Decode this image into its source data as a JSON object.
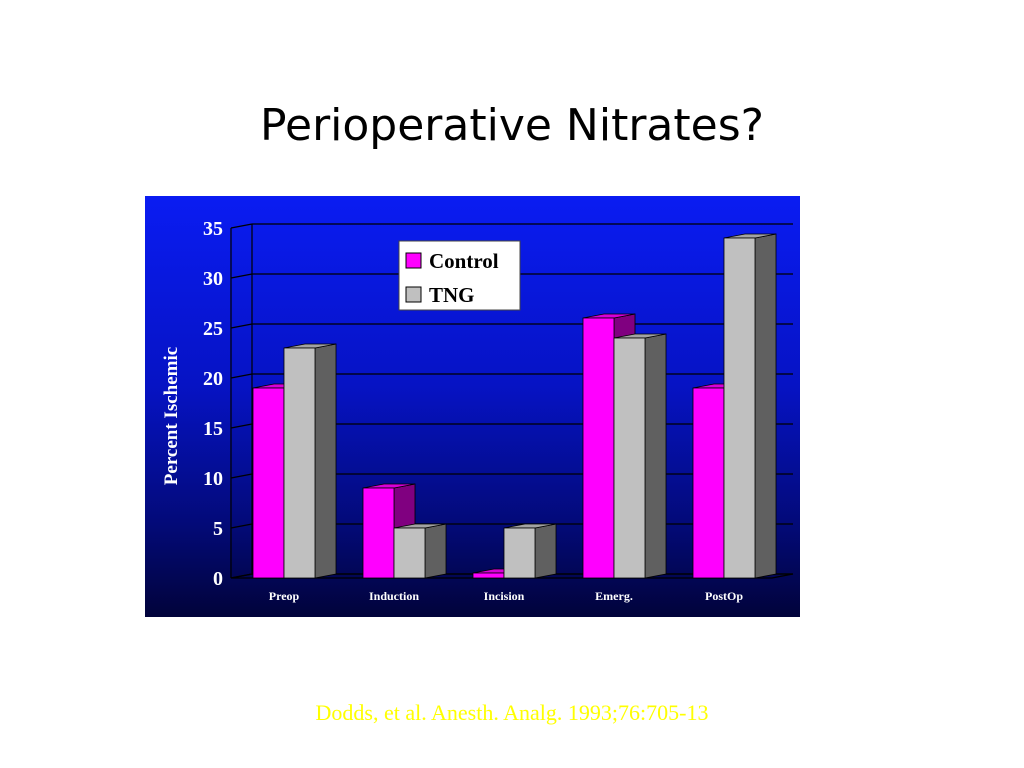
{
  "slide": {
    "title": "Perioperative Nitrates?",
    "citation": "Dodds, et al.  Anesth. Analg. 1993;76:705-13"
  },
  "colors": {
    "panel_top": "#0a1cf2",
    "panel_bottom": "#01033a",
    "control": "#ff00ff",
    "tng": "#c0c0c0",
    "citation": "#ffff00"
  },
  "chart_data": {
    "type": "bar",
    "categories": [
      "Preop",
      "Induction",
      "Incision",
      "Emerg.",
      "PostOp"
    ],
    "series": [
      {
        "name": "Control",
        "values": [
          19,
          9,
          0.5,
          26,
          19
        ]
      },
      {
        "name": "TNG",
        "values": [
          23,
          5,
          5,
          24,
          34
        ]
      }
    ],
    "ylabel": "Percent Ischemic",
    "xlabel": "",
    "ylim": [
      0,
      35
    ],
    "yticks": [
      0,
      5,
      10,
      15,
      20,
      25,
      30,
      35
    ],
    "grid": true,
    "legend": "top-center",
    "style": "3d-clustered-column"
  }
}
